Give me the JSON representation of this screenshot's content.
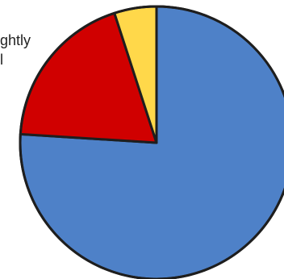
{
  "legend": {
    "line1": "ghtly",
    "line2": "l"
  },
  "chart_data": {
    "type": "pie",
    "slices": [
      {
        "value": 76,
        "color": "#4E81C8"
      },
      {
        "value": 19,
        "color": "#D00000"
      },
      {
        "value": 5,
        "color": "#FFD84A"
      }
    ],
    "start_angle_deg": 0,
    "direction": "clockwise",
    "edge_color": "#1E1E1E"
  }
}
